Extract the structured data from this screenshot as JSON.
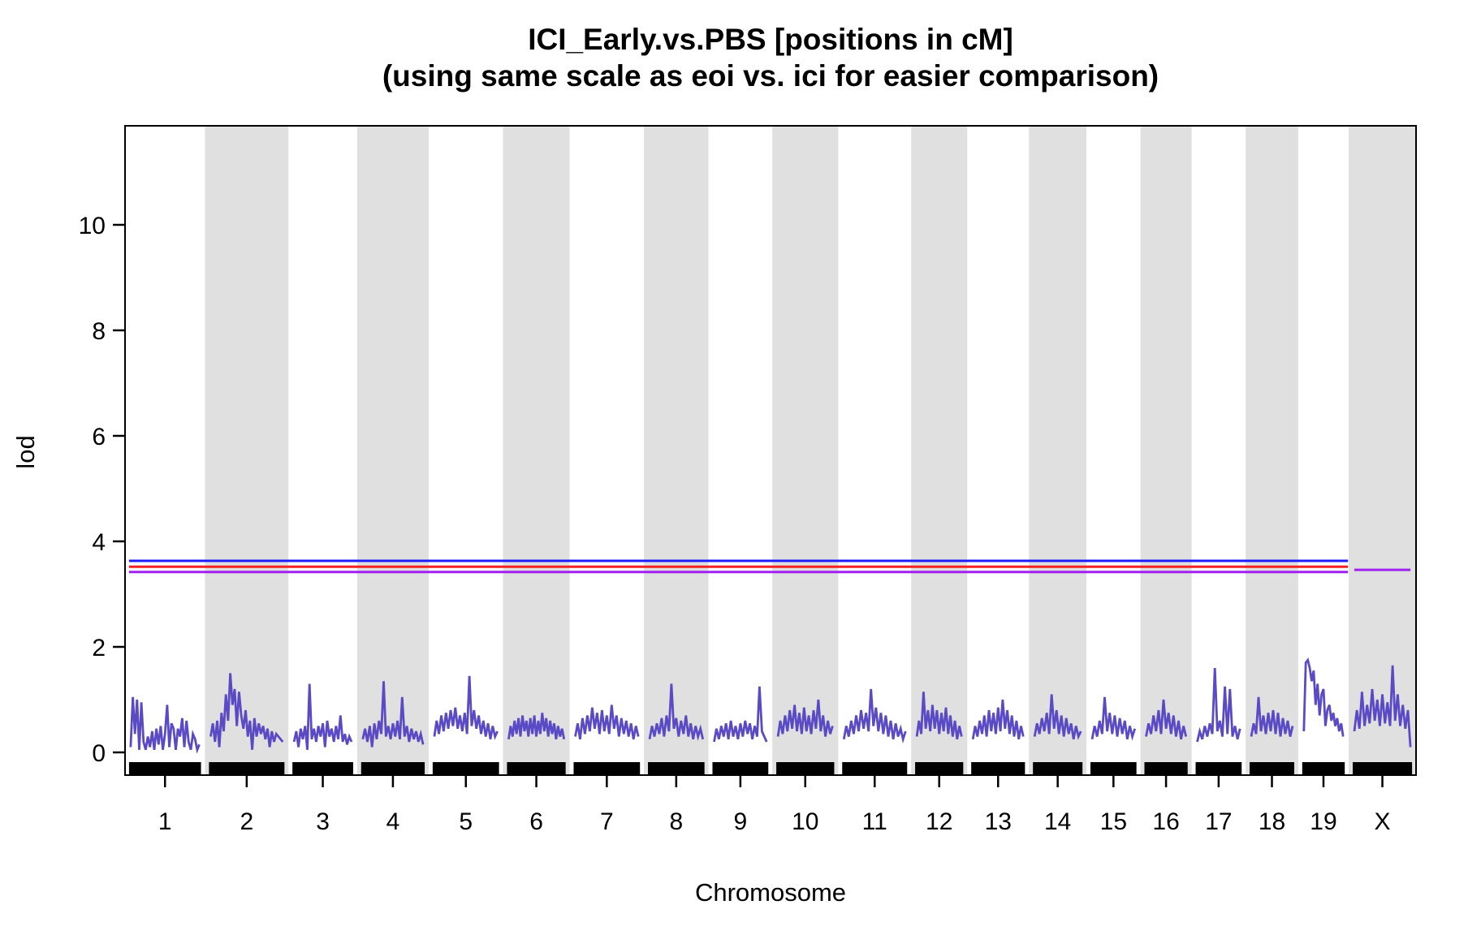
{
  "title": {
    "line1": "ICI_Early.vs.PBS [positions in cM]",
    "line2": "(using same scale as eoi vs. ici for easier comparison)"
  },
  "axes": {
    "y_label": "lod",
    "x_label": "Chromosome",
    "y_ticks": [
      0,
      2,
      4,
      6,
      8,
      10
    ],
    "x_tick_labels": [
      "1",
      "2",
      "3",
      "4",
      "5",
      "6",
      "7",
      "8",
      "9",
      "10",
      "11",
      "12",
      "13",
      "14",
      "15",
      "16",
      "17",
      "18",
      "19",
      "X"
    ]
  },
  "colors": {
    "background": "#ffffff",
    "band_gray": "#e0e0e0",
    "curve": "#5a4ac5",
    "rug": "#000000",
    "axis": "#000000",
    "threshold_blue": "#1c1cff",
    "threshold_red": "#f52020",
    "threshold_purple": "#a020f0"
  },
  "chart_data": {
    "type": "line",
    "title": "ICI_Early.vs.PBS [positions in cM] (using same scale as eoi vs. ici for easier comparison)",
    "xlabel": "Chromosome",
    "ylabel": "lod",
    "ylim": [
      -0.45,
      11.9
    ],
    "grid": false,
    "legend": "none",
    "gap_cM": 16,
    "band_pattern": "even chromosomes and X shaded gray",
    "thresholds": [
      {
        "color": "blue",
        "hex": "#1c1cff",
        "lod": 3.63,
        "span": "chromosomes 1-19"
      },
      {
        "color": "red",
        "hex": "#f52020",
        "lod": 3.52,
        "span": "chromosomes 1-19"
      },
      {
        "color": "purple",
        "hex": "#a020f0",
        "lod": 3.42,
        "span": "chromosomes 1-19"
      },
      {
        "color": "purple",
        "hex": "#a020f0",
        "lod": 3.46,
        "span": "chromosome X"
      }
    ],
    "chromosomes": [
      {
        "name": "1",
        "length_cM": 98,
        "lod": [
          0.1,
          1.05,
          0.35,
          1.0,
          0.05,
          0.95,
          0.2,
          0.05,
          0.3,
          0.1,
          0.4,
          0.05,
          0.45,
          0.15,
          0.5,
          0.05,
          0.35,
          0.9,
          0.1,
          0.55,
          0.45,
          0.05,
          0.45,
          0.3,
          0.65,
          0.1,
          0.6,
          0.2,
          0.05,
          0.35,
          0.25,
          0.05,
          0.15
        ]
      },
      {
        "name": "2",
        "length_cM": 103,
        "lod": [
          0.3,
          0.55,
          0.2,
          0.6,
          0.1,
          0.75,
          0.4,
          1.1,
          0.6,
          1.5,
          0.9,
          1.2,
          0.5,
          1.15,
          0.7,
          0.45,
          0.8,
          0.3,
          0.6,
          0.05,
          0.65,
          0.3,
          0.55,
          0.35,
          0.5,
          0.25,
          0.45,
          0.1,
          0.4,
          0.2,
          0.35,
          0.3,
          0.25,
          0.2
        ]
      },
      {
        "name": "3",
        "length_cM": 82,
        "lod": [
          0.2,
          0.4,
          0.1,
          0.45,
          0.25,
          0.5,
          0.05,
          1.3,
          0.25,
          0.45,
          0.2,
          0.5,
          0.3,
          0.55,
          0.1,
          0.6,
          0.3,
          0.45,
          0.2,
          0.5,
          0.25,
          0.7,
          0.2,
          0.35,
          0.15,
          0.3,
          0.2
        ]
      },
      {
        "name": "4",
        "length_cM": 86,
        "lod": [
          0.25,
          0.45,
          0.2,
          0.5,
          0.1,
          0.55,
          0.25,
          0.6,
          0.35,
          1.35,
          0.3,
          0.5,
          0.25,
          0.55,
          0.3,
          0.6,
          0.25,
          1.05,
          0.3,
          0.5,
          0.2,
          0.45,
          0.25,
          0.4,
          0.2,
          0.35,
          0.15
        ]
      },
      {
        "name": "5",
        "length_cM": 90,
        "lod": [
          0.3,
          0.6,
          0.35,
          0.7,
          0.4,
          0.75,
          0.45,
          0.8,
          0.5,
          0.85,
          0.45,
          0.7,
          0.4,
          0.75,
          0.35,
          1.45,
          0.5,
          0.8,
          0.45,
          0.7,
          0.35,
          0.6,
          0.3,
          0.55,
          0.25,
          0.5,
          0.3,
          0.4
        ]
      },
      {
        "name": "6",
        "length_cM": 79,
        "lod": [
          0.25,
          0.5,
          0.3,
          0.6,
          0.35,
          0.65,
          0.3,
          0.7,
          0.4,
          0.6,
          0.3,
          0.65,
          0.35,
          0.7,
          0.3,
          0.6,
          0.35,
          0.75,
          0.4,
          0.65,
          0.3,
          0.6,
          0.35,
          0.55,
          0.25,
          0.5,
          0.3,
          0.45,
          0.25
        ]
      },
      {
        "name": "7",
        "length_cM": 90,
        "lod": [
          0.3,
          0.55,
          0.25,
          0.65,
          0.35,
          0.7,
          0.4,
          0.85,
          0.45,
          0.75,
          0.35,
          0.8,
          0.4,
          0.7,
          0.35,
          0.9,
          0.45,
          0.7,
          0.3,
          0.65,
          0.35,
          0.6,
          0.3,
          0.55,
          0.25,
          0.5,
          0.3
        ]
      },
      {
        "name": "8",
        "length_cM": 76,
        "lod": [
          0.25,
          0.5,
          0.3,
          0.55,
          0.35,
          0.65,
          0.3,
          0.7,
          0.4,
          1.3,
          0.45,
          0.65,
          0.3,
          0.6,
          0.35,
          0.7,
          0.3,
          0.55,
          0.25,
          0.5,
          0.3,
          0.45,
          0.25
        ]
      },
      {
        "name": "9",
        "length_cM": 75,
        "lod": [
          0.2,
          0.45,
          0.25,
          0.5,
          0.3,
          0.55,
          0.25,
          0.6,
          0.3,
          0.5,
          0.25,
          0.55,
          0.3,
          0.6,
          0.35,
          0.55,
          0.25,
          0.5,
          0.3,
          1.25,
          0.4,
          0.3,
          0.2
        ]
      },
      {
        "name": "10",
        "length_cM": 78,
        "lod": [
          0.3,
          0.6,
          0.35,
          0.7,
          0.4,
          0.8,
          0.45,
          0.9,
          0.4,
          0.75,
          0.35,
          0.85,
          0.4,
          0.7,
          0.35,
          0.8,
          0.45,
          1.0,
          0.4,
          0.7,
          0.3,
          0.6,
          0.35,
          0.5
        ]
      },
      {
        "name": "11",
        "length_cM": 88,
        "lod": [
          0.25,
          0.5,
          0.3,
          0.6,
          0.35,
          0.7,
          0.4,
          0.8,
          0.45,
          0.75,
          0.4,
          1.2,
          0.5,
          0.85,
          0.4,
          0.75,
          0.35,
          0.7,
          0.3,
          0.6,
          0.25,
          0.55,
          0.3,
          0.45,
          0.25,
          0.4
        ]
      },
      {
        "name": "12",
        "length_cM": 64,
        "lod": [
          0.3,
          0.6,
          0.35,
          1.15,
          0.45,
          0.8,
          0.4,
          0.9,
          0.45,
          0.8,
          0.35,
          0.75,
          0.4,
          0.85,
          0.35,
          0.7,
          0.3,
          0.6,
          0.25,
          0.5,
          0.3
        ]
      },
      {
        "name": "13",
        "length_cM": 72,
        "lod": [
          0.25,
          0.5,
          0.3,
          0.6,
          0.35,
          0.7,
          0.3,
          0.8,
          0.4,
          0.75,
          0.35,
          0.85,
          0.4,
          1.0,
          0.45,
          0.8,
          0.35,
          0.7,
          0.3,
          0.6,
          0.25,
          0.5,
          0.3
        ]
      },
      {
        "name": "14",
        "length_cM": 66,
        "lod": [
          0.3,
          0.55,
          0.35,
          0.65,
          0.4,
          0.75,
          0.35,
          1.1,
          0.45,
          0.8,
          0.35,
          0.7,
          0.3,
          0.65,
          0.35,
          0.55,
          0.25,
          0.5,
          0.3,
          0.4
        ]
      },
      {
        "name": "15",
        "length_cM": 61,
        "lod": [
          0.25,
          0.5,
          0.3,
          0.6,
          0.35,
          1.05,
          0.4,
          0.75,
          0.35,
          0.7,
          0.3,
          0.65,
          0.35,
          0.6,
          0.25,
          0.5,
          0.3,
          0.45
        ]
      },
      {
        "name": "16",
        "length_cM": 57,
        "lod": [
          0.3,
          0.55,
          0.35,
          0.7,
          0.4,
          0.8,
          0.35,
          1.0,
          0.45,
          0.75,
          0.35,
          0.7,
          0.3,
          0.6,
          0.25,
          0.5,
          0.3
        ]
      },
      {
        "name": "17",
        "length_cM": 61,
        "lod": [
          0.2,
          0.4,
          0.25,
          0.5,
          0.3,
          0.55,
          0.35,
          1.6,
          0.4,
          0.6,
          0.3,
          1.25,
          0.35,
          1.2,
          0.3,
          0.5,
          0.25,
          0.45
        ]
      },
      {
        "name": "18",
        "length_cM": 59,
        "lod": [
          0.3,
          0.55,
          0.35,
          1.05,
          0.4,
          0.7,
          0.35,
          0.75,
          0.4,
          0.8,
          0.35,
          0.75,
          0.3,
          0.65,
          0.35,
          0.6,
          0.3,
          0.5
        ]
      },
      {
        "name": "19",
        "length_cM": 56,
        "lod": [
          0.4,
          1.7,
          1.75,
          1.6,
          1.35,
          1.55,
          0.9,
          1.3,
          0.7,
          1.1,
          1.2,
          0.5,
          0.8,
          0.9,
          0.6,
          0.75,
          0.5,
          0.65,
          0.4,
          0.55,
          0.3
        ]
      },
      {
        "name": "X",
        "length_cM": 80,
        "lod": [
          0.4,
          0.8,
          0.45,
          1.15,
          0.5,
          0.9,
          0.55,
          1.2,
          0.6,
          1.0,
          0.5,
          1.1,
          0.55,
          0.95,
          0.5,
          1.65,
          0.6,
          1.1,
          0.5,
          0.9,
          0.45,
          0.8,
          0.1
        ]
      }
    ]
  }
}
